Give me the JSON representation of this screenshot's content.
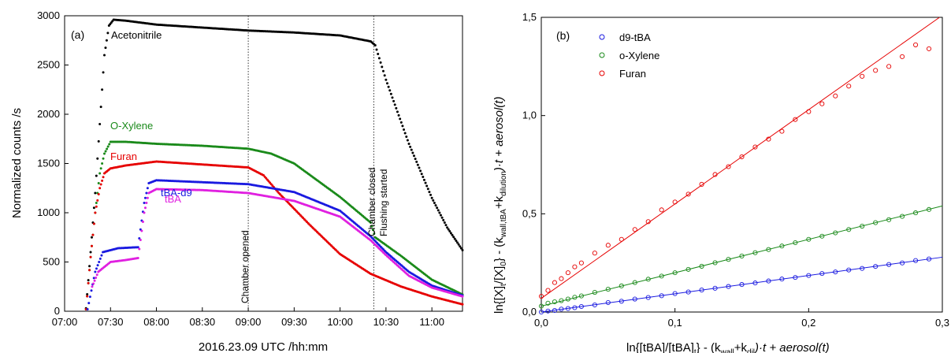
{
  "chart_data": [
    {
      "type": "scatter",
      "panel_label": "(a)",
      "xlabel": "2016.23.09 UTC /hh:mm",
      "ylabel": "Normalized counts /s",
      "xlim": [
        "07:00",
        "11:20"
      ],
      "ylim": [
        0,
        3000
      ],
      "x_ticks": [
        "07:00",
        "07:30",
        "08:00",
        "08:30",
        "09:00",
        "09:30",
        "10:00",
        "10:30",
        "11:00"
      ],
      "y_ticks": [
        "0",
        "500",
        "1000",
        "1500",
        "2000",
        "2500",
        "3000"
      ],
      "annotations": {
        "chamber_opened": {
          "time": "09:00",
          "text": "Chamber opened"
        },
        "chamber_closed": {
          "time": "10:22",
          "text_1": "Chamber closed",
          "text_2": "Flushing started"
        }
      },
      "series": [
        {
          "name": "Acetonitrile",
          "color": "#000000",
          "points": [
            [
              "07:14",
              30
            ],
            [
              "07:17",
              600
            ],
            [
              "07:20",
              1200
            ],
            [
              "07:23",
              1900
            ],
            [
              "07:26",
              2600
            ],
            [
              "07:29",
              2900
            ],
            [
              "07:32",
              2960
            ],
            [
              "07:40",
              2950
            ],
            [
              "08:00",
              2910
            ],
            [
              "08:30",
              2880
            ],
            [
              "09:00",
              2850
            ],
            [
              "09:30",
              2830
            ],
            [
              "10:00",
              2800
            ],
            [
              "10:20",
              2740
            ],
            [
              "10:23",
              2700
            ],
            [
              "10:30",
              2350
            ],
            [
              "10:45",
              1700
            ],
            [
              "11:00",
              1150
            ],
            [
              "11:10",
              850
            ],
            [
              "11:20",
              620
            ]
          ]
        },
        {
          "name": "O-Xylene",
          "color": "#1a8a1a",
          "points": [
            [
              "07:14",
              20
            ],
            [
              "07:17",
              550
            ],
            [
              "07:20",
              1000
            ],
            [
              "07:23",
              1400
            ],
            [
              "07:26",
              1600
            ],
            [
              "07:30",
              1720
            ],
            [
              "07:40",
              1720
            ],
            [
              "08:00",
              1700
            ],
            [
              "08:30",
              1680
            ],
            [
              "09:00",
              1650
            ],
            [
              "09:15",
              1600
            ],
            [
              "09:30",
              1500
            ],
            [
              "10:00",
              1160
            ],
            [
              "10:20",
              900
            ],
            [
              "10:23",
              750
            ],
            [
              "10:40",
              560
            ],
            [
              "11:00",
              320
            ],
            [
              "11:20",
              170
            ]
          ]
        },
        {
          "name": "Furan",
          "color": "#e60000",
          "points": [
            [
              "07:14",
              20
            ],
            [
              "07:17",
              550
            ],
            [
              "07:20",
              1000
            ],
            [
              "07:23",
              1250
            ],
            [
              "07:26",
              1400
            ],
            [
              "07:30",
              1450
            ],
            [
              "07:40",
              1480
            ],
            [
              "08:00",
              1520
            ],
            [
              "08:30",
              1490
            ],
            [
              "09:00",
              1460
            ],
            [
              "09:10",
              1380
            ],
            [
              "09:20",
              1200
            ],
            [
              "09:40",
              880
            ],
            [
              "10:00",
              580
            ],
            [
              "10:20",
              380
            ],
            [
              "10:40",
              250
            ],
            [
              "11:00",
              150
            ],
            [
              "11:20",
              70
            ]
          ]
        },
        {
          "name": "tBA-d9",
          "color": "#1a1ae0",
          "points": [
            [
              "07:15",
              20
            ],
            [
              "07:20",
              400
            ],
            [
              "07:25",
              600
            ],
            [
              "07:35",
              640
            ],
            [
              "07:48",
              650
            ],
            [
              "07:52",
              1100
            ],
            [
              "07:55",
              1300
            ],
            [
              "08:00",
              1330
            ],
            [
              "08:30",
              1310
            ],
            [
              "09:00",
              1290
            ],
            [
              "09:30",
              1210
            ],
            [
              "10:00",
              1020
            ],
            [
              "10:20",
              760
            ],
            [
              "10:30",
              600
            ],
            [
              "10:45",
              400
            ],
            [
              "11:00",
              260
            ],
            [
              "11:20",
              160
            ]
          ]
        },
        {
          "name": "tBA",
          "color": "#e020e0",
          "points": [
            [
              "07:18",
              250
            ],
            [
              "07:22",
              400
            ],
            [
              "07:30",
              500
            ],
            [
              "07:40",
              520
            ],
            [
              "07:48",
              540
            ],
            [
              "07:52",
              1000
            ],
            [
              "07:55",
              1200
            ],
            [
              "08:00",
              1240
            ],
            [
              "08:30",
              1230
            ],
            [
              "09:00",
              1200
            ],
            [
              "09:30",
              1120
            ],
            [
              "10:00",
              960
            ],
            [
              "10:20",
              720
            ],
            [
              "10:30",
              570
            ],
            [
              "10:45",
              360
            ],
            [
              "11:00",
              240
            ],
            [
              "11:20",
              150
            ]
          ]
        }
      ]
    },
    {
      "type": "scatter",
      "panel_label": "(b)",
      "xlabel_main": "ln{[tBA]/[tBA]",
      "xlabel_sub0": "t",
      "xlabel_mid": "} - (k",
      "xlabel_sub1": "wall",
      "xlabel_plus": "+k",
      "xlabel_sub2": "dil",
      "xlabel_end": ")·t + aerosol(t)",
      "ylabel_main": "ln{[X]",
      "ylabel_sub0": "t",
      "ylabel_mid": "/[X]",
      "ylabel_sub1": "0",
      "ylabel_mid2": "} - (k",
      "ylabel_sub2": "wall,tBA",
      "ylabel_plus": "+k",
      "ylabel_sub3": "dilution",
      "ylabel_end": ")·t + aerosol(t)",
      "xlim": [
        0,
        0.3
      ],
      "ylim": [
        0,
        1.5
      ],
      "x_ticks": [
        "0,0",
        "0,1",
        "0,2",
        "0,3"
      ],
      "y_ticks": [
        "0,0",
        "0,5",
        "1,0",
        "1,5"
      ],
      "legend_position": "top-left",
      "series": [
        {
          "name": "d9-tBA",
          "color": "#1a1ae0",
          "slope": 0.93,
          "intercept": 0.0,
          "x": [
            0.0,
            0.005,
            0.01,
            0.015,
            0.02,
            0.025,
            0.03,
            0.04,
            0.05,
            0.06,
            0.07,
            0.08,
            0.09,
            0.1,
            0.11,
            0.12,
            0.13,
            0.14,
            0.15,
            0.16,
            0.17,
            0.18,
            0.19,
            0.2,
            0.21,
            0.22,
            0.23,
            0.24,
            0.25,
            0.26,
            0.27,
            0.28,
            0.29
          ],
          "y": [
            0.0,
            0.005,
            0.008,
            0.015,
            0.018,
            0.022,
            0.028,
            0.036,
            0.048,
            0.055,
            0.066,
            0.074,
            0.083,
            0.094,
            0.102,
            0.112,
            0.121,
            0.13,
            0.14,
            0.148,
            0.158,
            0.168,
            0.176,
            0.186,
            0.196,
            0.204,
            0.214,
            0.222,
            0.232,
            0.242,
            0.25,
            0.262,
            0.27
          ]
        },
        {
          "name": "o-Xylene",
          "color": "#1a8a1a",
          "slope": 1.7,
          "intercept": 0.03,
          "x": [
            0.0,
            0.005,
            0.01,
            0.015,
            0.02,
            0.025,
            0.03,
            0.04,
            0.05,
            0.06,
            0.07,
            0.08,
            0.09,
            0.1,
            0.11,
            0.12,
            0.13,
            0.14,
            0.15,
            0.16,
            0.17,
            0.18,
            0.19,
            0.2,
            0.21,
            0.22,
            0.23,
            0.24,
            0.25,
            0.26,
            0.27,
            0.28,
            0.29
          ],
          "y": [
            0.03,
            0.045,
            0.052,
            0.058,
            0.066,
            0.075,
            0.082,
            0.1,
            0.116,
            0.133,
            0.15,
            0.167,
            0.183,
            0.2,
            0.217,
            0.233,
            0.251,
            0.268,
            0.285,
            0.302,
            0.318,
            0.336,
            0.353,
            0.37,
            0.386,
            0.403,
            0.42,
            0.437,
            0.455,
            0.47,
            0.487,
            0.505,
            0.522
          ]
        },
        {
          "name": "Furan",
          "color": "#e60000",
          "slope": 4.8,
          "intercept": 0.07,
          "x": [
            0.0,
            0.005,
            0.01,
            0.015,
            0.02,
            0.025,
            0.03,
            0.04,
            0.05,
            0.06,
            0.07,
            0.08,
            0.09,
            0.1,
            0.11,
            0.12,
            0.13,
            0.14,
            0.15,
            0.16,
            0.17,
            0.18,
            0.19,
            0.2,
            0.21,
            0.22,
            0.23,
            0.24,
            0.25,
            0.26,
            0.27,
            0.28,
            0.29
          ],
          "y": [
            0.08,
            0.11,
            0.15,
            0.17,
            0.2,
            0.23,
            0.25,
            0.3,
            0.34,
            0.37,
            0.42,
            0.46,
            0.52,
            0.56,
            0.6,
            0.65,
            0.7,
            0.74,
            0.79,
            0.84,
            0.88,
            0.92,
            0.98,
            1.02,
            1.06,
            1.1,
            1.15,
            1.2,
            1.23,
            1.25,
            1.3,
            1.36,
            1.34
          ]
        }
      ]
    }
  ]
}
